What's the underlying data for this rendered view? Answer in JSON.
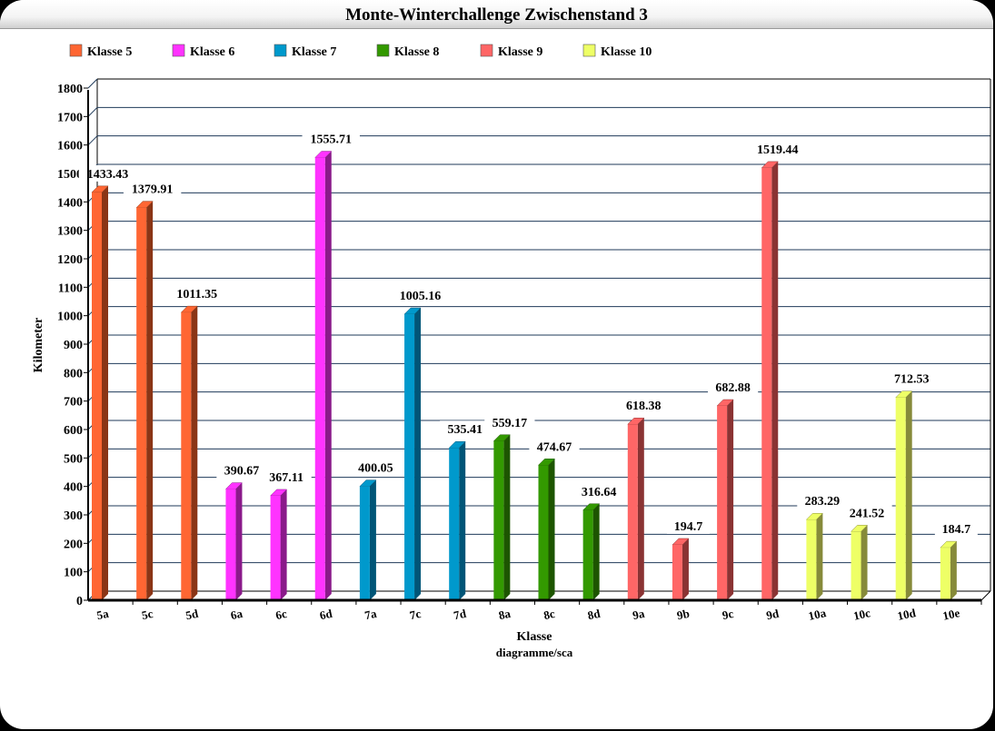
{
  "chart_data": {
    "type": "bar",
    "title": "Monte-Winterchallenge Zwischenstand 3",
    "xlabel": "Klasse",
    "xsublabel": "diagramme/sca",
    "ylabel": "Kilometer",
    "ylim": [
      0,
      1800
    ],
    "yticks": [
      "0",
      "100",
      "200",
      "300",
      "400",
      "500",
      "600",
      "700",
      "800",
      "900",
      "1000",
      "1100",
      "1200",
      "1300",
      "1400",
      "1500",
      "1600",
      "1700",
      "1800"
    ],
    "grid": true,
    "legend_position": "top",
    "legend": [
      {
        "name": "Klasse 5",
        "color": "#ff6633",
        "side": "#8a3516"
      },
      {
        "name": "Klasse 6",
        "color": "#ff33ff",
        "side": "#8a1a8a"
      },
      {
        "name": "Klasse 7",
        "color": "#0099cc",
        "side": "#005577"
      },
      {
        "name": "Klasse 8",
        "color": "#339900",
        "side": "#1d5500"
      },
      {
        "name": "Klasse 9",
        "color": "#ff6666",
        "side": "#8a3333"
      },
      {
        "name": "Klasse 10",
        "color": "#eeff66",
        "side": "#868a3a"
      }
    ],
    "categories": [
      "5a",
      "5c",
      "5d",
      "6a",
      "6c",
      "6d",
      "7a",
      "7c",
      "7d",
      "8a",
      "8c",
      "8d",
      "9a",
      "9b",
      "9c",
      "9d",
      "10a",
      "10c",
      "10d",
      "10e"
    ],
    "groups": [
      0,
      0,
      0,
      1,
      1,
      1,
      2,
      2,
      2,
      3,
      3,
      3,
      4,
      4,
      4,
      4,
      5,
      5,
      5,
      5
    ],
    "values": [
      1433.43,
      1379.91,
      1011.35,
      390.67,
      367.11,
      1555.71,
      400.05,
      1005.16,
      535.41,
      559.17,
      474.67,
      316.64,
      618.38,
      194.7,
      682.88,
      1519.44,
      283.29,
      241.52,
      712.53,
      184.7
    ],
    "labels": [
      "1433.43",
      "1379.91",
      "1011.35",
      "390.67",
      "367.11",
      "1555.71",
      "400.05",
      "1005.16",
      "535.41",
      "559.17",
      "474.67",
      "316.64",
      "618.38",
      "194.7",
      "682.88",
      "1519.44",
      "283.29",
      "241.52",
      "712.53",
      "184.7"
    ]
  }
}
